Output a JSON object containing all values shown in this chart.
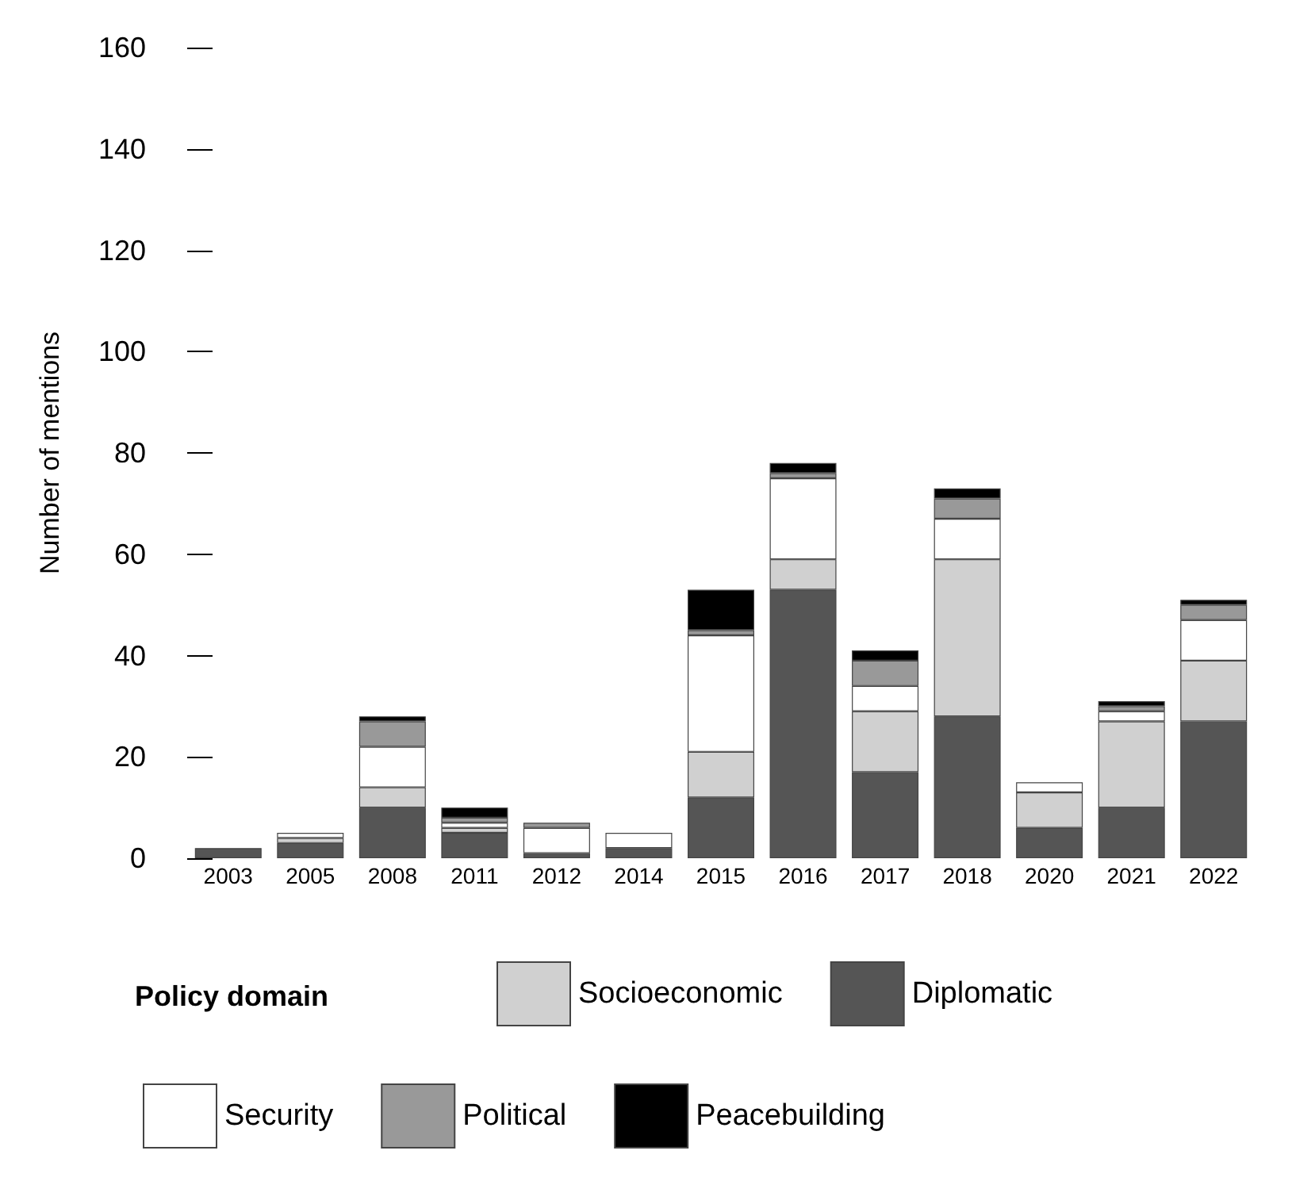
{
  "chart_data": {
    "type": "bar",
    "stacked": true,
    "ylabel": "Number of mentions",
    "legend_title": "Policy domain",
    "legend": "bottom",
    "grid": false,
    "categories": [
      "2003",
      "2005",
      "2008",
      "2011",
      "2012",
      "2014",
      "2015",
      "2016",
      "2017",
      "2018",
      "2020",
      "2021",
      "2022"
    ],
    "ylim": [
      0,
      160
    ],
    "yticks": [
      0,
      20,
      40,
      60,
      80,
      100,
      120,
      140,
      160
    ],
    "series": [
      {
        "name": "Diplomatic",
        "color": "#555555",
        "values": [
          2,
          3,
          10,
          5,
          1,
          2,
          12,
          53,
          17,
          28,
          6,
          10,
          27
        ]
      },
      {
        "name": "Socioeconomic",
        "color": "#d0d0d0",
        "values": [
          0,
          1,
          4,
          1,
          0,
          0,
          9,
          6,
          12,
          31,
          7,
          17,
          12
        ]
      },
      {
        "name": "Security",
        "color": "#ffffff",
        "values": [
          0,
          1,
          8,
          1,
          5,
          3,
          23,
          16,
          5,
          8,
          2,
          2,
          8
        ]
      },
      {
        "name": "Political",
        "color": "#999999",
        "values": [
          0,
          0,
          5,
          1,
          1,
          0,
          1,
          1,
          5,
          4,
          0,
          1,
          3
        ]
      },
      {
        "name": "Peacebuilding",
        "color": "#000000",
        "values": [
          0,
          0,
          1,
          2,
          0,
          0,
          8,
          2,
          2,
          2,
          0,
          1,
          1
        ]
      }
    ]
  }
}
